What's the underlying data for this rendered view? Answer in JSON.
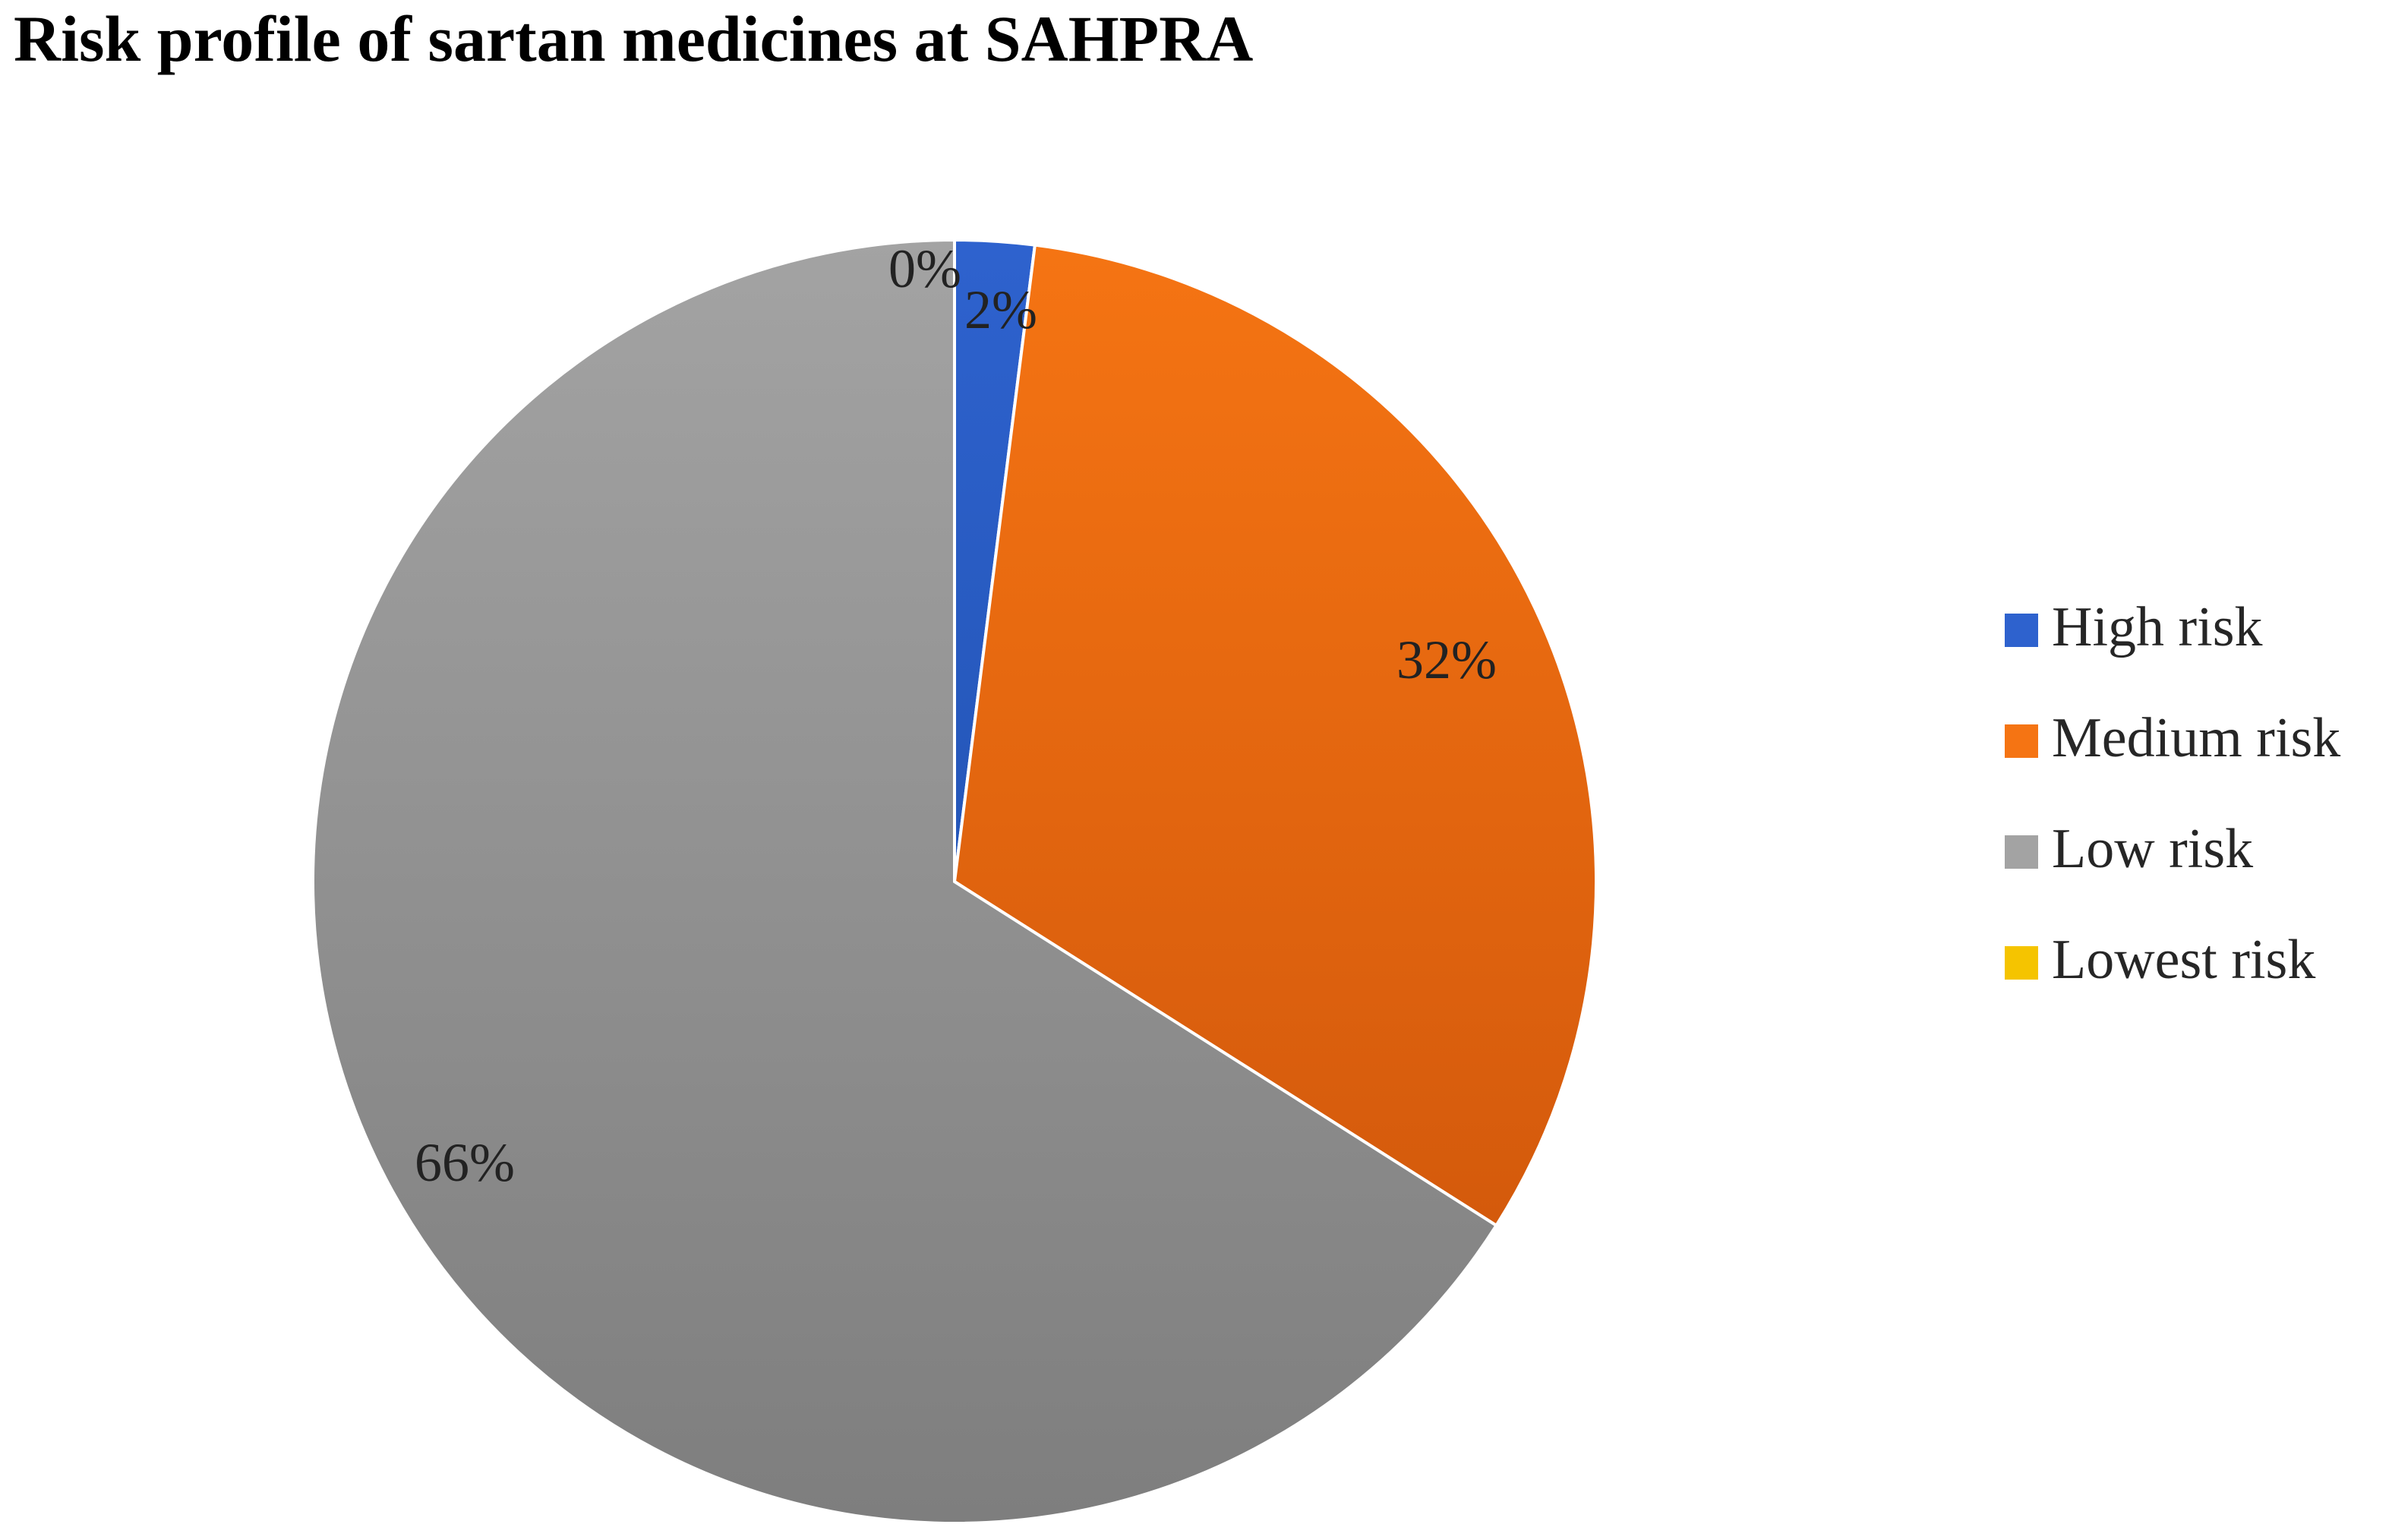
{
  "chart_data": {
    "type": "pie",
    "title": "Risk profile of sartan medicines at SAHPRA",
    "slices": [
      {
        "name": "High risk",
        "value": 2,
        "label": "2%",
        "color": "#2E62CE",
        "color_dark": "#2456B8"
      },
      {
        "name": "Medium risk",
        "value": 32,
        "label": "32%",
        "color": "#F57413",
        "color_dark": "#D45A0C"
      },
      {
        "name": "Low risk",
        "value": 66,
        "label": "66%",
        "color": "#A3A3A3",
        "color_dark": "#7E7E7E"
      },
      {
        "name": "Lowest risk",
        "value": 0,
        "label": "0%",
        "color": "#F5C400",
        "color_dark": "#E0A800"
      }
    ],
    "legend": {
      "position": "right",
      "entries": [
        "High risk",
        "Medium risk",
        "Low risk",
        "Lowest risk"
      ]
    },
    "data_labels": true,
    "start_angle": "12 o'clock, clockwise"
  }
}
